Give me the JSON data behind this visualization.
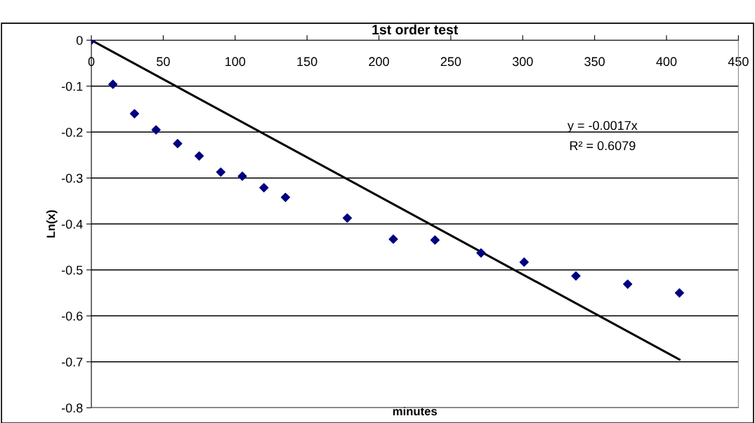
{
  "chart_data": {
    "type": "scatter",
    "title": "1st order test",
    "xlabel": "minutes",
    "ylabel": "Ln(x)",
    "annotations": [
      "y = -0.0017x",
      "R² = 0.6079"
    ],
    "series": [
      {
        "color": "#000080",
        "marker": "diamond",
        "x": [
          0,
          15,
          30,
          45,
          60,
          75,
          90,
          105,
          120,
          135,
          178,
          210,
          239,
          271,
          301,
          337,
          373,
          409
        ],
        "values": [
          0,
          -0.096,
          -0.16,
          -0.195,
          -0.225,
          -0.252,
          -0.287,
          -0.296,
          -0.321,
          -0.342,
          -0.387,
          -0.433,
          -0.435,
          -0.463,
          -0.483,
          -0.513,
          -0.531,
          -0.55
        ]
      },
      {
        "type": "line",
        "color": "#000000",
        "marker": "none",
        "line_style": "solid",
        "x": [
          0,
          409
        ],
        "values": [
          0,
          -0.695
        ]
      }
    ],
    "xlim": [
      0,
      450
    ],
    "xticks": [
      0,
      50,
      100,
      150,
      200,
      250,
      300,
      350,
      400,
      450
    ],
    "ylim": [
      -0.8,
      0
    ],
    "yticks": [
      -0.8,
      -0.7,
      -0.6,
      -0.5,
      -0.4,
      -0.3,
      -0.2,
      -0.1,
      0
    ],
    "grid": "y",
    "legend": false
  }
}
